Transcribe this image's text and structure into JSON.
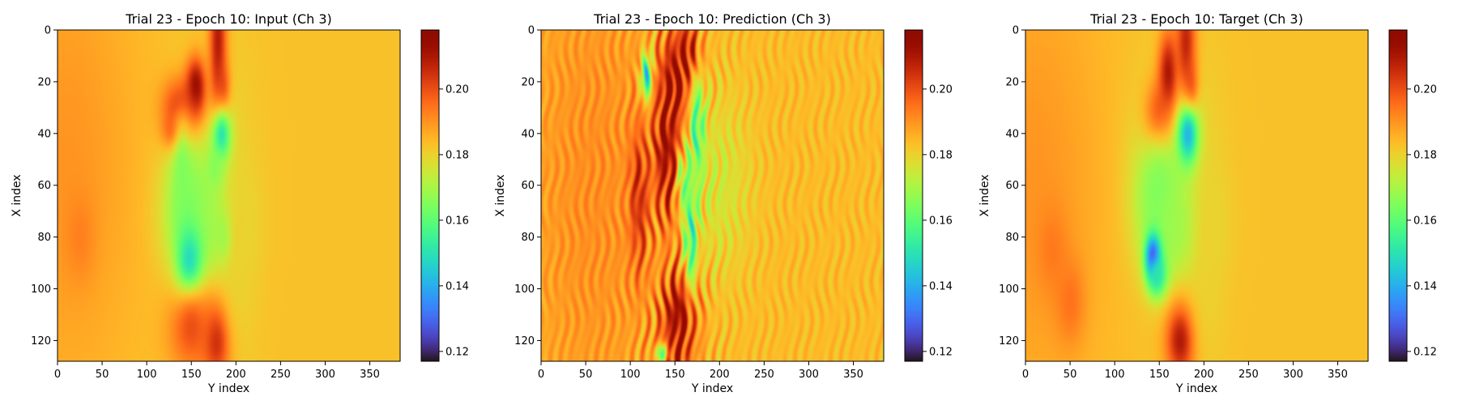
{
  "colormap": "turbo",
  "chart_data": [
    {
      "type": "heatmap",
      "title": "Trial 23 - Epoch 10: Input (Ch 3)",
      "xlabel": "Y index",
      "ylabel": "X index",
      "xlim": [
        0,
        384
      ],
      "ylim": [
        128,
        0
      ],
      "xticks": [
        0,
        50,
        100,
        150,
        200,
        250,
        300,
        350
      ],
      "yticks": [
        0,
        20,
        40,
        60,
        80,
        100,
        120
      ],
      "colorbar": {
        "range": [
          0.117,
          0.218
        ],
        "ticks": [
          0.12,
          0.14,
          0.16,
          0.18,
          0.2
        ],
        "tick_labels": [
          "0.12",
          "0.14",
          "0.16",
          "0.18",
          "0.20"
        ]
      },
      "background_value": 0.183,
      "blobs": [
        {
          "x": 10,
          "y": 50,
          "sx": 55,
          "sy": 65,
          "v": 0.19
        },
        {
          "x": 25,
          "y": 80,
          "sx": 12,
          "sy": 12,
          "v": 0.193
        },
        {
          "x": 170,
          "y": 35,
          "sx": 30,
          "sy": 25,
          "v": 0.18
        },
        {
          "x": 140,
          "y": 30,
          "sx": 15,
          "sy": 8,
          "v": 0.21
        },
        {
          "x": 155,
          "y": 22,
          "sx": 8,
          "sy": 8,
          "v": 0.215
        },
        {
          "x": 135,
          "y": 40,
          "sx": 10,
          "sy": 5,
          "v": 0.212
        },
        {
          "x": 180,
          "y": 5,
          "sx": 7,
          "sy": 20,
          "v": 0.21
        },
        {
          "x": 185,
          "y": 25,
          "sx": 6,
          "sy": 8,
          "v": 0.207
        },
        {
          "x": 185,
          "y": 42,
          "sx": 8,
          "sy": 8,
          "v": 0.138
        },
        {
          "x": 178,
          "y": 55,
          "sx": 7,
          "sy": 6,
          "v": 0.16
        },
        {
          "x": 150,
          "y": 70,
          "sx": 22,
          "sy": 18,
          "v": 0.163
        },
        {
          "x": 175,
          "y": 75,
          "sx": 25,
          "sy": 15,
          "v": 0.168
        },
        {
          "x": 140,
          "y": 55,
          "sx": 8,
          "sy": 15,
          "v": 0.165
        },
        {
          "x": 148,
          "y": 92,
          "sx": 10,
          "sy": 10,
          "v": 0.142
        },
        {
          "x": 190,
          "y": 80,
          "sx": 6,
          "sy": 6,
          "v": 0.158
        },
        {
          "x": 180,
          "y": 120,
          "sx": 12,
          "sy": 10,
          "v": 0.212
        },
        {
          "x": 150,
          "y": 115,
          "sx": 18,
          "sy": 12,
          "v": 0.2
        },
        {
          "x": 205,
          "y": 85,
          "sx": 15,
          "sy": 40,
          "v": 0.18
        }
      ],
      "streaks": 0
    },
    {
      "type": "heatmap",
      "title": "Trial 23 - Epoch 10: Prediction (Ch 3)",
      "xlabel": "Y index",
      "ylabel": "X index",
      "xlim": [
        0,
        384
      ],
      "ylim": [
        128,
        0
      ],
      "xticks": [
        0,
        50,
        100,
        150,
        200,
        250,
        300,
        350
      ],
      "yticks": [
        0,
        20,
        40,
        60,
        80,
        100,
        120
      ],
      "colorbar": {
        "range": [
          0.117,
          0.218
        ],
        "ticks": [
          0.12,
          0.14,
          0.16,
          0.18,
          0.2
        ],
        "tick_labels": [
          "0.12",
          "0.14",
          "0.16",
          "0.18",
          "0.20"
        ]
      },
      "background_value": 0.184,
      "blobs": [
        {
          "x": 60,
          "y": 60,
          "sx": 60,
          "sy": 80,
          "v": 0.191
        },
        {
          "x": 200,
          "y": 60,
          "sx": 25,
          "sy": 25,
          "v": 0.176
        },
        {
          "x": 150,
          "y": 20,
          "sx": 10,
          "sy": 12,
          "v": 0.213
        },
        {
          "x": 140,
          "y": 45,
          "sx": 10,
          "sy": 20,
          "v": 0.212
        },
        {
          "x": 165,
          "y": 10,
          "sx": 10,
          "sy": 10,
          "v": 0.21
        },
        {
          "x": 155,
          "y": 110,
          "sx": 14,
          "sy": 12,
          "v": 0.213
        },
        {
          "x": 145,
          "y": 125,
          "sx": 12,
          "sy": 5,
          "v": 0.21
        },
        {
          "x": 110,
          "y": 65,
          "sx": 8,
          "sy": 20,
          "v": 0.205
        },
        {
          "x": 118,
          "y": 18,
          "sx": 4,
          "sy": 6,
          "v": 0.145
        },
        {
          "x": 175,
          "y": 38,
          "sx": 6,
          "sy": 15,
          "v": 0.158
        },
        {
          "x": 168,
          "y": 80,
          "sx": 5,
          "sy": 15,
          "v": 0.155
        },
        {
          "x": 160,
          "y": 60,
          "sx": 4,
          "sy": 8,
          "v": 0.162
        },
        {
          "x": 135,
          "y": 125,
          "sx": 6,
          "sy": 3,
          "v": 0.162
        }
      ],
      "streaks": 1
    },
    {
      "type": "heatmap",
      "title": "Trial 23 - Epoch 10: Target (Ch 3)",
      "xlabel": "Y index",
      "ylabel": "X index",
      "xlim": [
        0,
        384
      ],
      "ylim": [
        128,
        0
      ],
      "xticks": [
        0,
        50,
        100,
        150,
        200,
        250,
        300,
        350
      ],
      "yticks": [
        0,
        20,
        40,
        60,
        80,
        100,
        120
      ],
      "colorbar": {
        "range": [
          0.117,
          0.218
        ],
        "ticks": [
          0.12,
          0.14,
          0.16,
          0.18,
          0.2
        ],
        "tick_labels": [
          "0.12",
          "0.14",
          "0.16",
          "0.18",
          "0.20"
        ]
      },
      "background_value": 0.183,
      "blobs": [
        {
          "x": 10,
          "y": 60,
          "sx": 55,
          "sy": 65,
          "v": 0.19
        },
        {
          "x": 30,
          "y": 85,
          "sx": 12,
          "sy": 12,
          "v": 0.194
        },
        {
          "x": 50,
          "y": 105,
          "sx": 12,
          "sy": 12,
          "v": 0.195
        },
        {
          "x": 165,
          "y": 40,
          "sx": 30,
          "sy": 25,
          "v": 0.178
        },
        {
          "x": 150,
          "y": 35,
          "sx": 12,
          "sy": 10,
          "v": 0.21
        },
        {
          "x": 160,
          "y": 18,
          "sx": 8,
          "sy": 12,
          "v": 0.213
        },
        {
          "x": 185,
          "y": 25,
          "sx": 6,
          "sy": 8,
          "v": 0.21
        },
        {
          "x": 180,
          "y": 5,
          "sx": 8,
          "sy": 15,
          "v": 0.208
        },
        {
          "x": 183,
          "y": 42,
          "sx": 9,
          "sy": 9,
          "v": 0.125
        },
        {
          "x": 150,
          "y": 65,
          "sx": 20,
          "sy": 20,
          "v": 0.163
        },
        {
          "x": 175,
          "y": 75,
          "sx": 25,
          "sy": 15,
          "v": 0.168
        },
        {
          "x": 143,
          "y": 88,
          "sx": 6,
          "sy": 6,
          "v": 0.12
        },
        {
          "x": 148,
          "y": 95,
          "sx": 8,
          "sy": 6,
          "v": 0.15
        },
        {
          "x": 175,
          "y": 120,
          "sx": 12,
          "sy": 10,
          "v": 0.212
        },
        {
          "x": 205,
          "y": 85,
          "sx": 15,
          "sy": 40,
          "v": 0.18
        }
      ],
      "streaks": 0
    }
  ]
}
